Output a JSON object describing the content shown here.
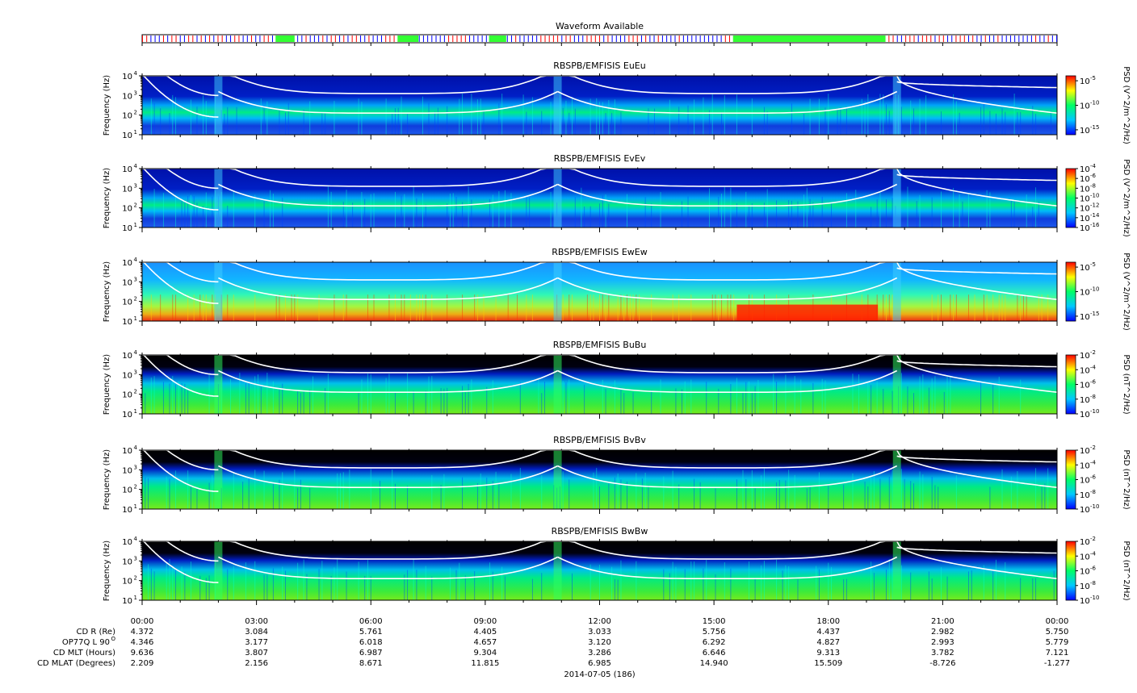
{
  "chart_data": {
    "type": "heatmap",
    "waveform": {
      "title": "Waveform Available"
    },
    "x_ticks": [
      "00:00",
      "03:00",
      "06:00",
      "09:00",
      "12:00",
      "15:00",
      "18:00",
      "21:00",
      "00:00"
    ],
    "x_range_hours": [
      0,
      24
    ],
    "date_label": "2014-07-05 (186)",
    "ylabel": "Frequency (Hz)",
    "y_scale": "log",
    "ylim": [
      10,
      10000
    ],
    "y_tick_exponents": [
      "1",
      "2",
      "3",
      "4"
    ],
    "y_tick_base": "10",
    "panels": [
      {
        "title": "RBSPB/EMFISIS  EuEu",
        "cbar_label": "PSD (V^2/m^2/Hz)",
        "cbar_ticks": [
          "-5",
          "-10",
          "-15"
        ],
        "cbar_range": [
          -16,
          -4
        ],
        "background": "#001ab3",
        "lowband": "blue"
      },
      {
        "title": "RBSPB/EMFISIS  EvEv",
        "cbar_label": "PSD (V^2/m^2/Hz)",
        "cbar_ticks": [
          "-4",
          "-6",
          "-8",
          "-10",
          "-12",
          "-14",
          "-16"
        ],
        "cbar_range": [
          -16,
          -4
        ],
        "background": "#001ab3",
        "lowband": "blue"
      },
      {
        "title": "RBSPB/EMFISIS  EwEw",
        "cbar_label": "PSD (V^2/m^2/Hz)",
        "cbar_ticks": [
          "-5",
          "-10",
          "-15"
        ],
        "cbar_range": [
          -16,
          -4
        ],
        "background": "#1f9cff",
        "lowband": "red"
      },
      {
        "title": "RBSPB/EMFISIS  BuBu",
        "cbar_label": "PSD (nT^2/Hz)",
        "cbar_ticks": [
          "-2",
          "-4",
          "-6",
          "-8",
          "-10"
        ],
        "cbar_range": [
          -10,
          -2
        ],
        "background": "#000000",
        "lowband": "green"
      },
      {
        "title": "RBSPB/EMFISIS  BvBv",
        "cbar_label": "PSD (nT^2/Hz)",
        "cbar_ticks": [
          "-2",
          "-4",
          "-6",
          "-8",
          "-10"
        ],
        "cbar_range": [
          -10,
          -2
        ],
        "background": "#000000",
        "lowband": "green"
      },
      {
        "title": "RBSPB/EMFISIS  BwBw",
        "cbar_label": "PSD (nT^2/Hz)",
        "cbar_ticks": [
          "-2",
          "-4",
          "-6",
          "-8",
          "-10"
        ],
        "cbar_range": [
          -10,
          -2
        ],
        "background": "#000000",
        "lowband": "green"
      }
    ],
    "ephemeris": {
      "labels": [
        "CD R (Re)",
        "OP77Q L 90",
        "CD MLT (Hours)",
        "CD MLAT (Degrees)"
      ],
      "label_superscript": "O",
      "rows": [
        [
          "4.372",
          "3.084",
          "5.761",
          "4.405",
          "3.033",
          "5.756",
          "4.437",
          "2.982",
          "5.750"
        ],
        [
          "4.346",
          "3.177",
          "6.018",
          "4.657",
          "3.120",
          "6.292",
          "4.827",
          "2.993",
          "5.779"
        ],
        [
          "9.636",
          "3.807",
          "6.987",
          "9.304",
          "3.286",
          "6.646",
          "9.313",
          "3.782",
          "7.121"
        ],
        [
          "2.209",
          "2.156",
          "8.671",
          "11.815",
          "6.985",
          "14.940",
          "15.509",
          "-8.726",
          "-1.277"
        ]
      ]
    },
    "colors": {
      "waveform_burst": "#33ff33",
      "waveform_survey": "#0000ff",
      "waveform_marker": "#ff0000",
      "cyclotron_lines": "#ffffff",
      "colormap": [
        "#0000ff",
        "#00c8ff",
        "#00ff66",
        "#ffff00",
        "#ff0000"
      ]
    }
  }
}
